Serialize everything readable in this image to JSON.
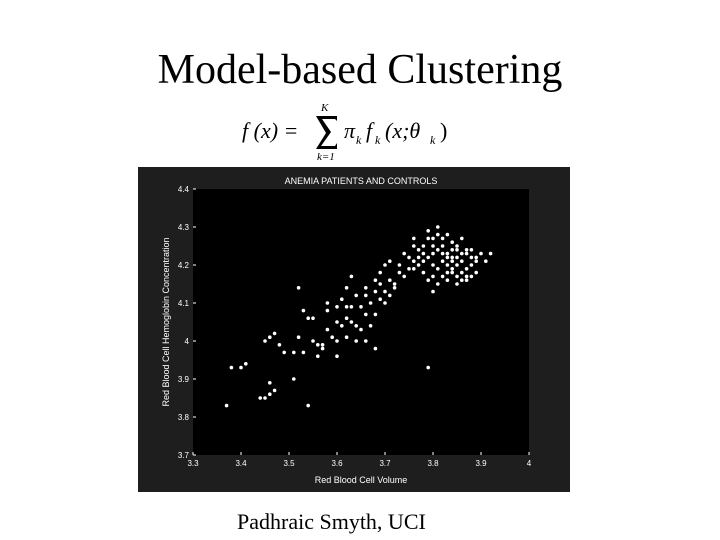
{
  "slide": {
    "title": "Model-based Clustering",
    "footer": "Padhraic Smyth, UCI"
  },
  "formula": {
    "lhs": "f (x) =",
    "sum_upper": "K",
    "sum_lower": "k=1",
    "pi": "π",
    "sub_k": "k",
    "f": "f",
    "args": "(x;θ",
    "close": ")"
  },
  "colors": {
    "background": "#ffffff",
    "chart_bg": "#000000",
    "chart_frame": "#1e1e1e",
    "points": "#ffffff",
    "text": "#000000"
  },
  "chart_data": {
    "type": "scatter",
    "title": "ANEMIA PATIENTS AND CONTROLS",
    "xlabel": "Red Blood Cell Volume",
    "ylabel": "Red Blood Cell Hemoglobin Concentration",
    "xlim": [
      3.3,
      4.0
    ],
    "ylim": [
      3.7,
      4.4
    ],
    "xticks": [
      "3.3",
      "3.4",
      "3.5",
      "3.6",
      "3.7",
      "3.8",
      "3.9",
      "4"
    ],
    "yticks": [
      "3.7",
      "3.8",
      "3.9",
      "4",
      "4.1",
      "4.2",
      "4.3",
      "4.4"
    ],
    "grid": false,
    "series": [
      {
        "points": [
          [
            3.37,
            3.83
          ],
          [
            3.38,
            3.93
          ],
          [
            3.4,
            3.93
          ],
          [
            3.41,
            3.94
          ],
          [
            3.44,
            3.85
          ],
          [
            3.45,
            3.85
          ],
          [
            3.46,
            3.86
          ],
          [
            3.46,
            3.89
          ],
          [
            3.47,
            3.87
          ],
          [
            3.46,
            4.01
          ],
          [
            3.47,
            4.02
          ],
          [
            3.45,
            4.0
          ],
          [
            3.48,
            3.99
          ],
          [
            3.49,
            3.97
          ],
          [
            3.51,
            3.97
          ],
          [
            3.51,
            3.9
          ],
          [
            3.52,
            4.01
          ],
          [
            3.53,
            3.97
          ],
          [
            3.54,
            4.06
          ],
          [
            3.55,
            4.06
          ],
          [
            3.55,
            4.0
          ],
          [
            3.56,
            3.99
          ],
          [
            3.56,
            3.96
          ],
          [
            3.54,
            3.83
          ],
          [
            3.57,
            3.98
          ],
          [
            3.58,
            4.03
          ],
          [
            3.58,
            4.08
          ],
          [
            3.6,
            3.96
          ],
          [
            3.61,
            4.04
          ],
          [
            3.62,
            4.06
          ],
          [
            3.63,
            4.09
          ],
          [
            3.64,
            4.12
          ],
          [
            3.65,
            4.09
          ],
          [
            3.66,
            4.12
          ],
          [
            3.67,
            4.04
          ],
          [
            3.68,
            4.07
          ],
          [
            3.7,
            4.1
          ],
          [
            3.71,
            4.12
          ],
          [
            3.72,
            4.15
          ],
          [
            3.6,
            4.09
          ],
          [
            3.61,
            4.11
          ],
          [
            3.62,
            4.14
          ],
          [
            3.63,
            4.17
          ],
          [
            3.6,
            4.0
          ],
          [
            3.62,
            4.01
          ],
          [
            3.64,
            4.0
          ],
          [
            3.65,
            4.03
          ],
          [
            3.66,
            4.07
          ],
          [
            3.67,
            4.1
          ],
          [
            3.68,
            4.13
          ],
          [
            3.69,
            4.11
          ],
          [
            3.7,
            4.13
          ],
          [
            3.71,
            4.16
          ],
          [
            3.72,
            4.14
          ],
          [
            3.73,
            4.18
          ],
          [
            3.74,
            4.17
          ],
          [
            3.75,
            4.19
          ],
          [
            3.76,
            4.21
          ],
          [
            3.77,
            4.22
          ],
          [
            3.66,
            4.14
          ],
          [
            3.68,
            4.16
          ],
          [
            3.69,
            4.15
          ],
          [
            3.7,
            4.2
          ],
          [
            3.71,
            4.21
          ],
          [
            3.69,
            4.18
          ],
          [
            3.6,
            4.05
          ],
          [
            3.62,
            4.09
          ],
          [
            3.63,
            4.05
          ],
          [
            3.58,
            4.1
          ],
          [
            3.52,
            4.14
          ],
          [
            3.53,
            4.08
          ],
          [
            3.57,
            3.99
          ],
          [
            3.59,
            4.01
          ],
          [
            3.64,
            4.04
          ],
          [
            3.66,
            4.0
          ],
          [
            3.68,
            3.98
          ],
          [
            3.79,
            3.93
          ],
          [
            3.73,
            4.2
          ],
          [
            3.75,
            4.22
          ],
          [
            3.76,
            4.25
          ],
          [
            3.77,
            4.24
          ],
          [
            3.78,
            4.25
          ],
          [
            3.79,
            4.27
          ],
          [
            3.8,
            4.23
          ],
          [
            3.81,
            4.24
          ],
          [
            3.82,
            4.25
          ],
          [
            3.83,
            4.22
          ],
          [
            3.84,
            4.24
          ],
          [
            3.85,
            4.22
          ],
          [
            3.86,
            4.21
          ],
          [
            3.87,
            4.23
          ],
          [
            3.88,
            4.22
          ],
          [
            3.89,
            4.21
          ],
          [
            3.9,
            4.23
          ],
          [
            3.8,
            4.2
          ],
          [
            3.81,
            4.19
          ],
          [
            3.82,
            4.21
          ],
          [
            3.83,
            4.2
          ],
          [
            3.84,
            4.19
          ],
          [
            3.85,
            4.2
          ],
          [
            3.86,
            4.18
          ],
          [
            3.87,
            4.19
          ],
          [
            3.88,
            4.2
          ],
          [
            3.79,
            4.16
          ],
          [
            3.8,
            4.17
          ],
          [
            3.81,
            4.15
          ],
          [
            3.82,
            4.17
          ],
          [
            3.83,
            4.16
          ],
          [
            3.84,
            4.18
          ],
          [
            3.85,
            4.17
          ],
          [
            3.86,
            4.16
          ],
          [
            3.87,
            4.17
          ],
          [
            3.78,
            4.23
          ],
          [
            3.8,
            4.27
          ],
          [
            3.81,
            4.28
          ],
          [
            3.82,
            4.27
          ],
          [
            3.83,
            4.28
          ],
          [
            3.84,
            4.26
          ],
          [
            3.85,
            4.25
          ],
          [
            3.86,
            4.27
          ],
          [
            3.81,
            4.3
          ],
          [
            3.79,
            4.29
          ],
          [
            3.83,
            4.23
          ],
          [
            3.84,
            4.22
          ],
          [
            3.85,
            4.24
          ],
          [
            3.86,
            4.23
          ],
          [
            3.87,
            4.24
          ],
          [
            3.88,
            4.24
          ],
          [
            3.89,
            4.22
          ],
          [
            3.91,
            4.21
          ],
          [
            3.92,
            4.23
          ],
          [
            3.76,
            4.19
          ],
          [
            3.77,
            4.2
          ],
          [
            3.78,
            4.21
          ],
          [
            3.79,
            4.22
          ],
          [
            3.8,
            4.25
          ],
          [
            3.83,
            4.18
          ],
          [
            3.85,
            4.15
          ],
          [
            3.87,
            4.16
          ],
          [
            3.88,
            4.17
          ],
          [
            3.89,
            4.18
          ],
          [
            3.74,
            4.23
          ],
          [
            3.76,
            4.27
          ],
          [
            3.78,
            4.18
          ],
          [
            3.8,
            4.13
          ],
          [
            3.82,
            4.23
          ],
          [
            3.84,
            4.21
          ]
        ]
      }
    ]
  }
}
